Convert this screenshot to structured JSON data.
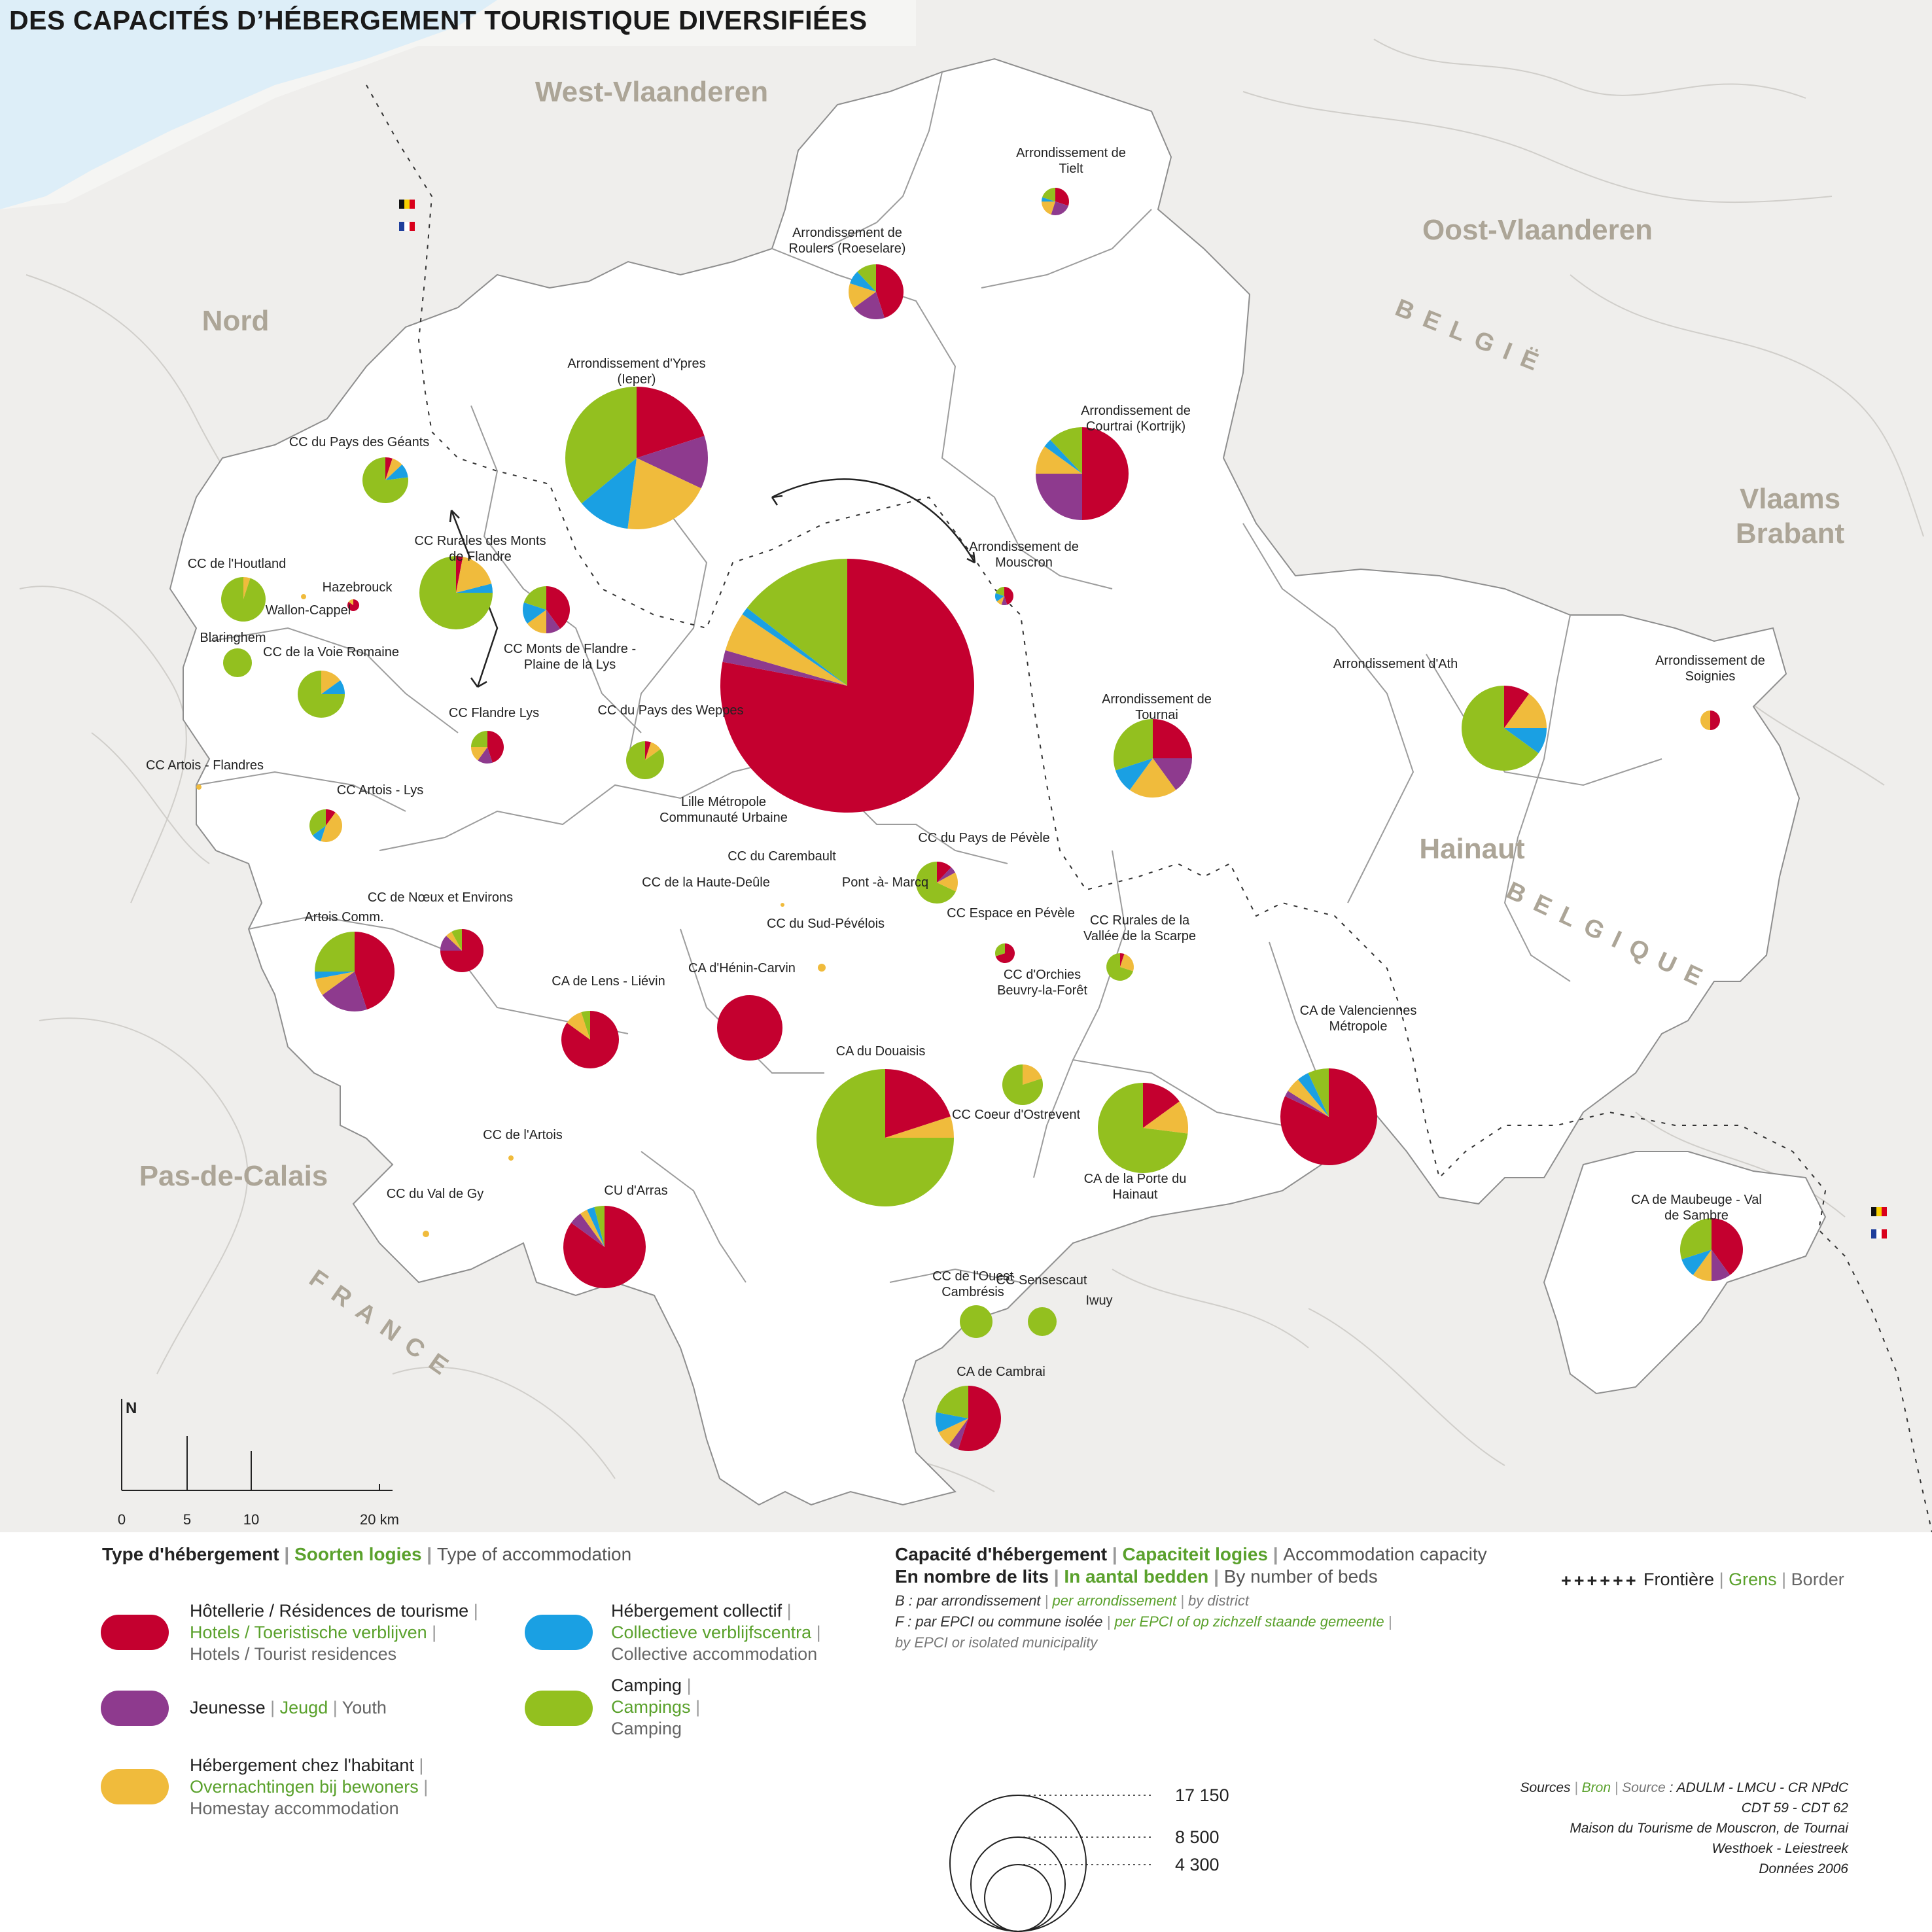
{
  "title": "DES CAPACITÉS D’HÉBERGEMENT TOURISTIQUE DIVERSIFIÉES",
  "colors": {
    "hotels": "#c4002f",
    "youth": "#8e3a8e",
    "homestay": "#f0bb3c",
    "collective": "#1aa0e3",
    "camping": "#93c01f",
    "region_label": "#aca597"
  },
  "regions": {
    "west_vlaanderen": "West-Vlaanderen",
    "oost_vlaanderen": "Oost-Vlaanderen",
    "nord": "Nord",
    "vlaams": "Vlaams",
    "brabant": "Brabant",
    "hainaut": "Hainaut",
    "pas_de_calais": "Pas-de-Calais",
    "belgie": "BELGIË",
    "belgique": "BELGIQUE",
    "france": "FRANCE"
  },
  "units": [
    {
      "label": "Arrondissement de Tielt",
      "share": [
        0.3,
        0.25,
        0.2,
        0.05,
        0.2
      ]
    },
    {
      "label": "Arrondissement de Roulers (Roeselare)",
      "share": [
        0.45,
        0.2,
        0.15,
        0.08,
        0.12
      ]
    },
    {
      "label": "Arrondissement d'Ypres (Ieper)",
      "share": [
        0.2,
        0.12,
        0.2,
        0.12,
        0.36
      ]
    },
    {
      "label": "Arrondissement de Courtrai (Kortrijk)",
      "share": [
        0.5,
        0.25,
        0.1,
        0.03,
        0.12
      ]
    },
    {
      "label": "Arrondissement de Mouscron",
      "share": [
        0.45,
        0.1,
        0.1,
        0.15,
        0.2
      ]
    },
    {
      "label": "CC du Pays des Géants",
      "share": [
        0.05,
        0.0,
        0.08,
        0.1,
        0.77
      ]
    },
    {
      "label": "CC Rurales des Monts de Flandre",
      "share": [
        0.03,
        0.0,
        0.18,
        0.04,
        0.75
      ]
    },
    {
      "label": "CC de l'Houtland",
      "share": [
        0.0,
        0.0,
        0.05,
        0.0,
        0.95
      ]
    },
    {
      "label": "Hazebrouck",
      "share": [
        0.85,
        0.0,
        0.15,
        0.0,
        0.0
      ]
    },
    {
      "label": "Wallon-Cappel",
      "share": [
        0.0,
        0.0,
        1.0,
        0.0,
        0.0
      ]
    },
    {
      "label": "CC Monts de Flandre - Plaine de la Lys",
      "share": [
        0.4,
        0.1,
        0.15,
        0.15,
        0.2
      ]
    },
    {
      "label": "Blaringhem",
      "share": [
        0.0,
        0.0,
        0.0,
        0.0,
        1.0
      ]
    },
    {
      "label": "CC de la Voie Romaine",
      "share": [
        0.0,
        0.0,
        0.15,
        0.1,
        0.75
      ]
    },
    {
      "label": "CC Flandre Lys",
      "share": [
        0.45,
        0.15,
        0.15,
        0.0,
        0.25
      ]
    },
    {
      "label": "CC du Pays des Weppes",
      "share": [
        0.05,
        0.0,
        0.1,
        0.0,
        0.85
      ]
    },
    {
      "label": "Lille Métropole Communauté Urbaine",
      "share": [
        0.78,
        0.015,
        0.05,
        0.01,
        0.145
      ]
    },
    {
      "label": "CC Artois - Flandres",
      "share": [
        0.0,
        0.0,
        1.0,
        0.0,
        0.0
      ]
    },
    {
      "label": "CC Artois - Lys",
      "share": [
        0.1,
        0.0,
        0.45,
        0.1,
        0.35
      ]
    },
    {
      "label": "CC du Carembault",
      "share": [
        0.0,
        0.0,
        1.0,
        0.0,
        0.0
      ]
    },
    {
      "label": "CC de la Haute-Deûle",
      "share": [
        0.0,
        0.0,
        0.0,
        0.0,
        0.0
      ]
    },
    {
      "label": "Pont -à- Marcq",
      "share": [
        0.0,
        0.0,
        0.0,
        0.0,
        0.0
      ]
    },
    {
      "label": "CC du Pays de Pévèle",
      "share": [
        0.12,
        0.05,
        0.15,
        0.0,
        0.68
      ]
    },
    {
      "label": "CC de Nœux et Environs",
      "share": [
        0.75,
        0.12,
        0.05,
        0.0,
        0.08
      ]
    },
    {
      "label": "Artois Comm.",
      "share": [
        0.45,
        0.2,
        0.07,
        0.03,
        0.25
      ]
    },
    {
      "label": "CC du Sud-Pévélois",
      "share": [
        0.0,
        0.0,
        1.0,
        0.0,
        0.0
      ]
    },
    {
      "label": "CC Espace en Pévèle",
      "share": [
        0.7,
        0.0,
        0.0,
        0.0,
        0.3
      ]
    },
    {
      "label": "CC Rurales de la Vallée de la Scarpe",
      "share": [
        0.05,
        0.0,
        0.25,
        0.0,
        0.7
      ]
    },
    {
      "label": "CC d'Orchies Beuvry-la-Forêt",
      "share": [
        0.0,
        0.0,
        0.0,
        0.0,
        0.0
      ]
    },
    {
      "label": "CA de Lens - Liévin",
      "share": [
        0.85,
        0.0,
        0.1,
        0.0,
        0.05
      ]
    },
    {
      "label": "CA d'Hénin-Carvin",
      "share": [
        1.0,
        0.0,
        0.0,
        0.0,
        0.0
      ]
    },
    {
      "label": "CA du Douaisis",
      "share": [
        0.2,
        0.0,
        0.05,
        0.0,
        0.75
      ]
    },
    {
      "label": "CC Coeur d'Ostrevent",
      "share": [
        0.0,
        0.0,
        0.2,
        0.0,
        0.8
      ]
    },
    {
      "label": "CA de la Porte du Hainaut",
      "share": [
        0.15,
        0.0,
        0.12,
        0.0,
        0.73
      ]
    },
    {
      "label": "CA de Valenciennes Métropole",
      "share": [
        0.82,
        0.02,
        0.05,
        0.04,
        0.07
      ]
    },
    {
      "label": "CC de l'Artois",
      "share": [
        0.0,
        0.0,
        1.0,
        0.0,
        0.0
      ]
    },
    {
      "label": "CC du Val de Gy",
      "share": [
        0.0,
        0.0,
        1.0,
        0.0,
        0.0
      ]
    },
    {
      "label": "CU d'Arras",
      "share": [
        0.85,
        0.05,
        0.03,
        0.03,
        0.04
      ]
    },
    {
      "label": "CC de l'Ouest Cambrésis",
      "share": [
        0.0,
        0.0,
        0.0,
        0.0,
        1.0
      ]
    },
    {
      "label": "CC Sensescaut",
      "share": [
        0.0,
        0.0,
        0.0,
        0.0,
        1.0
      ]
    },
    {
      "label": "Iwuy",
      "share": [
        0.0,
        0.0,
        0.0,
        0.0,
        0.0
      ]
    },
    {
      "label": "CA de Cambrai",
      "share": [
        0.55,
        0.05,
        0.08,
        0.1,
        0.22
      ]
    },
    {
      "label": "Arrondissement d'Ath",
      "share": [
        0.1,
        0.0,
        0.15,
        0.1,
        0.65
      ]
    },
    {
      "label": "Arrondissement de Tournai",
      "share": [
        0.25,
        0.15,
        0.2,
        0.1,
        0.3
      ]
    },
    {
      "label": "Arrondissement de Soignies",
      "share": [
        0.5,
        0.0,
        0.5,
        0.0,
        0.0
      ]
    },
    {
      "label": "CA de Maubeuge - Val de Sambre",
      "share": [
        0.4,
        0.1,
        0.1,
        0.1,
        0.3
      ]
    }
  ],
  "scale_bar": {
    "north": "N",
    "ticks": [
      "0",
      "5",
      "10",
      "20 km"
    ]
  },
  "legend": {
    "type_heading": {
      "fr": "Type d'hébergement",
      "nl": "Soorten logies",
      "en": "Type of accommodation"
    },
    "types": [
      {
        "key": "hotels",
        "fr": "Hôtellerie / Résidences de tourisme",
        "nl": "Hotels / Toeristische verblijven",
        "en": "Hotels / Tourist residences"
      },
      {
        "key": "youth",
        "fr": "Jeunesse",
        "nl": "Jeugd",
        "en": "Youth"
      },
      {
        "key": "homestay",
        "fr": "Hébergement chez l'habitant",
        "nl": "Overnachtingen bij bewoners",
        "en": "Homestay accommodation"
      },
      {
        "key": "collective",
        "fr": "Hébergement collectif",
        "nl": "Collectieve verblijfscentra",
        "en": "Collective accommodation"
      },
      {
        "key": "camping",
        "fr": "Camping",
        "nl": "Campings",
        "en": "Camping"
      }
    ],
    "capacity_heading": {
      "fr": "Capacité d'hébergement",
      "nl": "Capaciteit logies",
      "en": "Accommodation capacity"
    },
    "beds_heading": {
      "fr": "En nombre de lits",
      "nl": "In aantal bedden",
      "en": "By number of beds"
    },
    "note_b": {
      "fr": "B : par arrondissement",
      "nl": "per arrondissement",
      "en": "by district"
    },
    "note_f": {
      "fr": "F : par EPCI ou commune isolée",
      "nl": "per EPCI of op zichzelf staande gemeente",
      "en": "by EPCI or isolated municipality"
    },
    "circle_values": [
      "17 150",
      "8 500",
      "4 300"
    ],
    "border": {
      "fr": "Frontière",
      "nl": "Grens",
      "en": "Border",
      "symbol": "++++++"
    }
  },
  "sources": {
    "label_fr": "Sources",
    "label_nl": "Bron",
    "label_en": "Source",
    "lines": [
      "ADULM - LMCU - CR NPdC",
      "CDT 59 - CDT 62",
      "Maison du Tourisme de Mouscron, de Tournai",
      "Westhoek - Leiestreek",
      "Données 2006"
    ]
  }
}
